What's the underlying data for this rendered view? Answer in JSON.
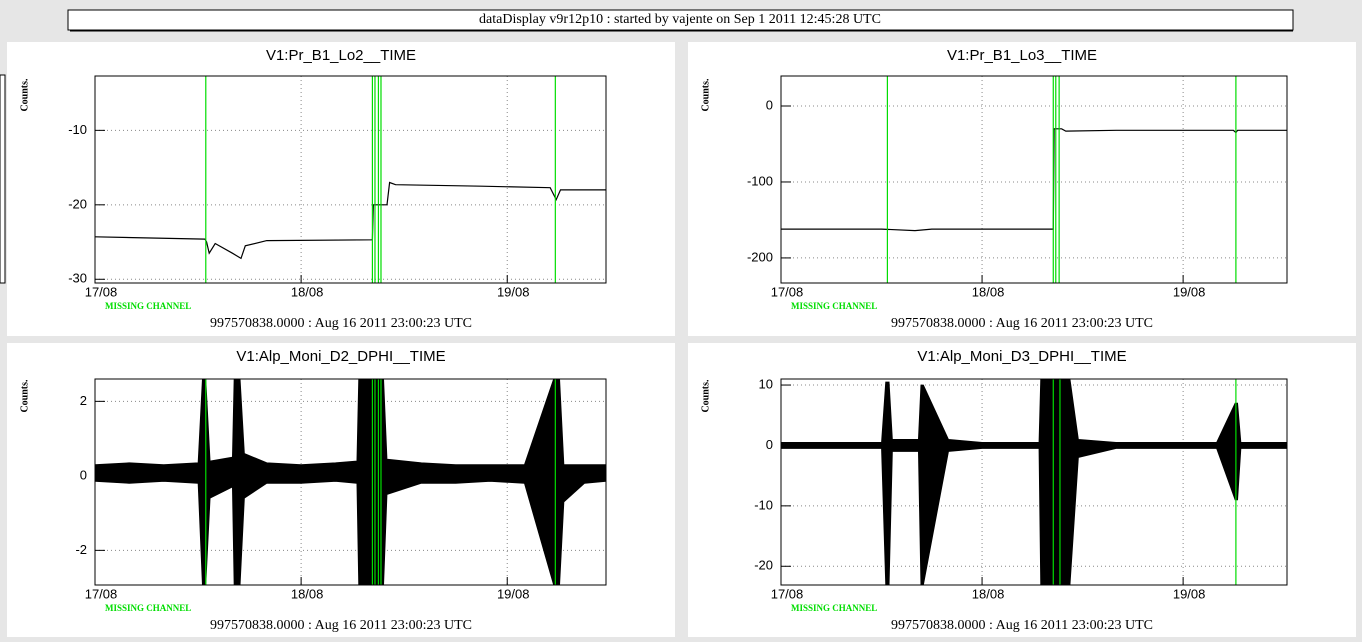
{
  "header": {
    "title": "dataDisplay v9r12p10 : started by vajente on Sep  1 2011 12:45:28 UTC"
  },
  "chart_data": [
    {
      "type": "line",
      "title": "V1:Pr_B1_Lo2__TIME",
      "y_label": "Counts.",
      "xlim": [
        0,
        59.5
      ],
      "xticks": [
        {
          "value": 0,
          "label": "17/08"
        },
        {
          "value": 24,
          "label": "18/08"
        },
        {
          "value": 48,
          "label": "19/08"
        }
      ],
      "ylim": [
        -30.5,
        -2.7
      ],
      "yticks": [
        -30,
        -20,
        -10
      ],
      "grid": true,
      "series": [
        {
          "color": "#000000",
          "x": [
            0,
            12.8,
            13.0,
            13.3,
            14,
            16,
            17,
            17.5,
            20,
            32.3,
            32.4,
            34,
            34.3,
            35,
            45,
            53,
            53.7,
            54.2,
            59.5
          ],
          "values": [
            -24.3,
            -24.6,
            -25,
            -26.5,
            -25.2,
            -26.5,
            -27.2,
            -25.5,
            -24.8,
            -24.7,
            -20,
            -20,
            -17,
            -17.3,
            -17.5,
            -17.7,
            -19.3,
            -18,
            -18
          ]
        }
      ],
      "markers": {
        "color": "#00dd00",
        "x": [
          12.9,
          32.3,
          32.6,
          33.0,
          33.3,
          53.6
        ]
      },
      "annotation": "MISSING CHANNEL",
      "annotation_color": "#00dd00",
      "footer": "997570838.0000 : Aug 16 2011 23:00:23 UTC"
    },
    {
      "type": "line",
      "title": "V1:Pr_B1_Lo3__TIME",
      "y_label": "Counts.",
      "xlim": [
        0,
        60.4
      ],
      "xticks": [
        {
          "value": 0,
          "label": "17/08"
        },
        {
          "value": 24,
          "label": "18/08"
        },
        {
          "value": 48,
          "label": "19/08"
        }
      ],
      "ylim": [
        -233,
        39.5
      ],
      "yticks": [
        -200,
        -100,
        0
      ],
      "grid": true,
      "series": [
        {
          "color": "#000000",
          "x": [
            0,
            12,
            16,
            18,
            32.5,
            32.6,
            33.5,
            34,
            40,
            54,
            54.3,
            54.5,
            60.4
          ],
          "values": [
            -162,
            -162,
            -164,
            -162,
            -162,
            -30,
            -30,
            -33,
            -32,
            -32,
            -35,
            -32,
            -32
          ]
        }
      ],
      "markers": {
        "color": "#00dd00",
        "x": [
          12.7,
          32.5,
          32.8,
          33.2,
          54.3
        ]
      },
      "annotation": "MISSING CHANNEL",
      "annotation_color": "#00dd00",
      "footer": "997570838.0000 : Aug 16 2011 23:00:23 UTC"
    },
    {
      "type": "band",
      "title": "V1:Alp_Moni_D2_DPHI__TIME",
      "y_label": "Counts.",
      "xlim": [
        0,
        59.5
      ],
      "xticks": [
        {
          "value": 0,
          "label": "17/08"
        },
        {
          "value": 24,
          "label": "18/08"
        },
        {
          "value": 48,
          "label": "19/08"
        }
      ],
      "ylim": [
        -2.93,
        2.6
      ],
      "yticks": [
        -2,
        0,
        2
      ],
      "grid": true,
      "series": [
        {
          "color": "#000000",
          "x": [
            0,
            4,
            8,
            12,
            12.5,
            12.9,
            13.4,
            16.0,
            16.2,
            16.9,
            17.4,
            20,
            24,
            28,
            30.5,
            30.7,
            33.6,
            34,
            38,
            42,
            46,
            50,
            53.4,
            54.1,
            54.6,
            57,
            59.5
          ],
          "upper": [
            0.3,
            0.35,
            0.3,
            0.35,
            2.6,
            2.6,
            0.4,
            0.5,
            2.6,
            2.6,
            0.6,
            0.35,
            0.3,
            0.35,
            0.4,
            2.6,
            2.6,
            0.45,
            0.35,
            0.3,
            0.3,
            0.3,
            2.6,
            2.6,
            0.3,
            0.3,
            0.3
          ],
          "lower": [
            -0.15,
            -0.2,
            -0.15,
            -0.2,
            -2.93,
            -2.93,
            -0.6,
            -0.3,
            -2.93,
            -2.93,
            -0.6,
            -0.2,
            -0.2,
            -0.15,
            -0.2,
            -2.93,
            -2.93,
            -0.5,
            -0.2,
            -0.2,
            -0.15,
            -0.2,
            -2.93,
            -2.93,
            -0.7,
            -0.2,
            -0.15
          ]
        }
      ],
      "markers": {
        "color": "#00dd00",
        "x": [
          12.9,
          32.3,
          32.6,
          33.0,
          33.3,
          53.6
        ]
      },
      "annotation": "MISSING CHANNEL",
      "annotation_color": "#00dd00",
      "footer": "997570838.0000 : Aug 16 2011 23:00:23 UTC"
    },
    {
      "type": "band",
      "title": "V1:Alp_Moni_D3_DPHI__TIME",
      "y_label": "Counts.",
      "xlim": [
        0,
        60.4
      ],
      "xticks": [
        {
          "value": 0,
          "label": "17/08"
        },
        {
          "value": 24,
          "label": "18/08"
        },
        {
          "value": 48,
          "label": "19/08"
        }
      ],
      "ylim": [
        -23.1,
        11
      ],
      "yticks": [
        -20,
        -10,
        0,
        10
      ],
      "grid": true,
      "series": [
        {
          "color": "#000000",
          "x": [
            0,
            12,
            12.5,
            12.9,
            13.3,
            16.4,
            16.7,
            17.0,
            20,
            24,
            28,
            30.8,
            31,
            34.5,
            35.5,
            40,
            46,
            52,
            54.2,
            54.5,
            54.9,
            60.4
          ],
          "upper": [
            0.5,
            0.5,
            10.5,
            10.5,
            1,
            1,
            10,
            10,
            1,
            0.5,
            0.5,
            0.5,
            11,
            11,
            1,
            0.5,
            0.5,
            0.5,
            7,
            7,
            0.5,
            0.5
          ],
          "lower": [
            -0.5,
            -0.5,
            -23.1,
            -23.1,
            -1,
            -1,
            -23.1,
            -23.1,
            -1,
            -0.5,
            -0.5,
            -0.5,
            -23.1,
            -23.1,
            -2,
            -0.5,
            -0.5,
            -0.5,
            -9,
            -9,
            -0.5,
            -0.5
          ]
        }
      ],
      "markers": {
        "color": "#00dd00",
        "x": [
          32.5,
          33.3,
          54.3
        ]
      },
      "annotation": "MISSING CHANNEL",
      "annotation_color": "#00dd00",
      "footer": "997570838.0000 : Aug 16 2011 23:00:23 UTC"
    }
  ]
}
